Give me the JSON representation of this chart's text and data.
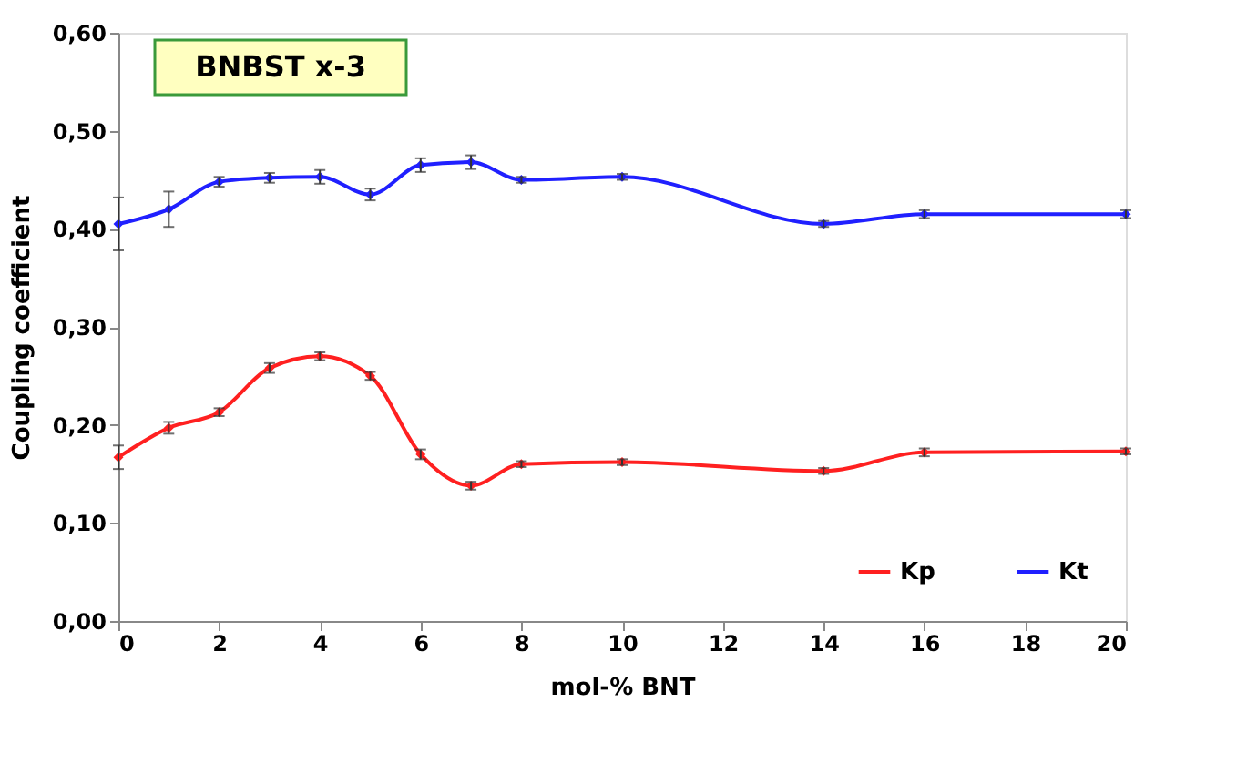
{
  "chart_data": {
    "type": "line",
    "title": "BNBST x-3",
    "xlabel": "mol-% BNT",
    "ylabel": "Coupling coefficient",
    "x": [
      0,
      1,
      2,
      3,
      4,
      5,
      6,
      7,
      8,
      10,
      14,
      16,
      20
    ],
    "series": [
      {
        "name": "Kp",
        "color": "#ff2020",
        "values": [
          0.167,
          0.197,
          0.213,
          0.258,
          0.27,
          0.25,
          0.17,
          0.138,
          0.16,
          0.162,
          0.153,
          0.172,
          0.173
        ],
        "errors": [
          0.012,
          0.006,
          0.004,
          0.005,
          0.004,
          0.004,
          0.005,
          0.004,
          0.003,
          0.003,
          0.003,
          0.004,
          0.003
        ]
      },
      {
        "name": "Kt",
        "color": "#2020ff",
        "values": [
          0.405,
          0.42,
          0.448,
          0.452,
          0.453,
          0.435,
          0.465,
          0.468,
          0.45,
          0.453,
          0.405,
          0.415,
          0.415
        ],
        "errors": [
          0.027,
          0.018,
          0.005,
          0.005,
          0.007,
          0.006,
          0.007,
          0.007,
          0.003,
          0.003,
          0.003,
          0.004,
          0.004
        ]
      }
    ],
    "xlim": [
      0,
      20
    ],
    "xticks": [
      0,
      2,
      4,
      6,
      8,
      10,
      12,
      14,
      16,
      18,
      20
    ],
    "ylim": [
      0,
      0.6
    ],
    "yticks": [
      {
        "value": 0,
        "label": "0,00"
      },
      {
        "value": 0.1,
        "label": "0,10"
      },
      {
        "value": 0.2,
        "label": "0,20"
      },
      {
        "value": 0.3,
        "label": "0,30"
      },
      {
        "value": 0.4,
        "label": "0,40"
      },
      {
        "value": 0.5,
        "label": "0,50"
      },
      {
        "value": 0.6,
        "label": "0,60"
      }
    ],
    "marker": "diamond",
    "line_style": "solid",
    "grid": false,
    "legend": "bottom right"
  }
}
